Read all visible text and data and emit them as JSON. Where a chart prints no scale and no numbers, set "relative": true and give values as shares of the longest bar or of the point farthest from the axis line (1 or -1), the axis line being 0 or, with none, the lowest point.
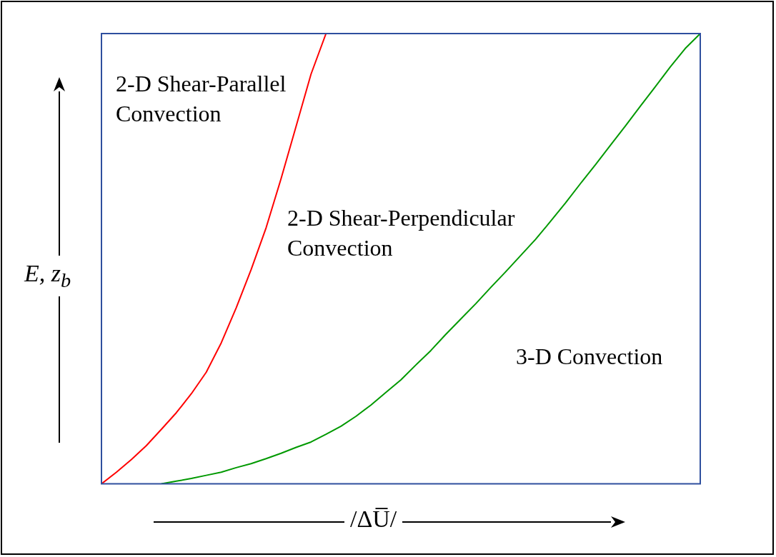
{
  "chart_data": {
    "type": "line",
    "relative": true,
    "xlabel": "/ΔU̅/",
    "ylabel": "E, z$_{b}$",
    "grid": false,
    "legend": false,
    "marker": "none",
    "line_style": "solid",
    "annotations": [
      "2-D Shear-Parallel Convection",
      "2-D Shear-Perpendicular Convection",
      "3-D Convection"
    ],
    "categories": [
      null,
      null,
      null,
      null,
      null,
      null,
      null,
      null,
      null,
      null,
      null,
      null,
      null,
      null,
      null,
      null,
      null,
      null,
      null,
      null,
      null,
      null,
      null,
      null,
      null,
      null,
      null,
      null,
      null,
      null,
      null,
      null,
      null,
      null,
      null,
      null,
      null,
      null,
      null,
      null,
      null
    ],
    "series": [
      {
        "color": "#ff0000",
        "values": [
          0,
          0.026,
          0.054,
          0.085,
          0.121,
          0.158,
          0.2,
          0.248,
          0.313,
          0.391,
          0.476,
          0.569,
          0.678,
          0.794,
          0.91,
          1,
          null,
          null,
          null,
          null,
          null,
          null,
          null,
          null,
          null,
          null,
          null,
          null,
          null,
          null,
          null,
          null,
          null,
          null,
          null,
          null,
          null,
          null,
          null,
          null,
          null
        ]
      },
      {
        "color": "#009900",
        "values": [
          null,
          null,
          null,
          null,
          0,
          0.006,
          0.012,
          0.019,
          0.026,
          0.036,
          0.045,
          0.056,
          0.068,
          0.081,
          0.093,
          0.11,
          0.128,
          0.15,
          0.175,
          0.203,
          0.231,
          0.264,
          0.296,
          0.332,
          0.366,
          0.4,
          0.436,
          0.471,
          0.507,
          0.543,
          0.583,
          0.624,
          0.667,
          0.709,
          0.752,
          0.795,
          0.839,
          0.882,
          0.926,
          0.967,
          1
        ]
      }
    ]
  }
}
